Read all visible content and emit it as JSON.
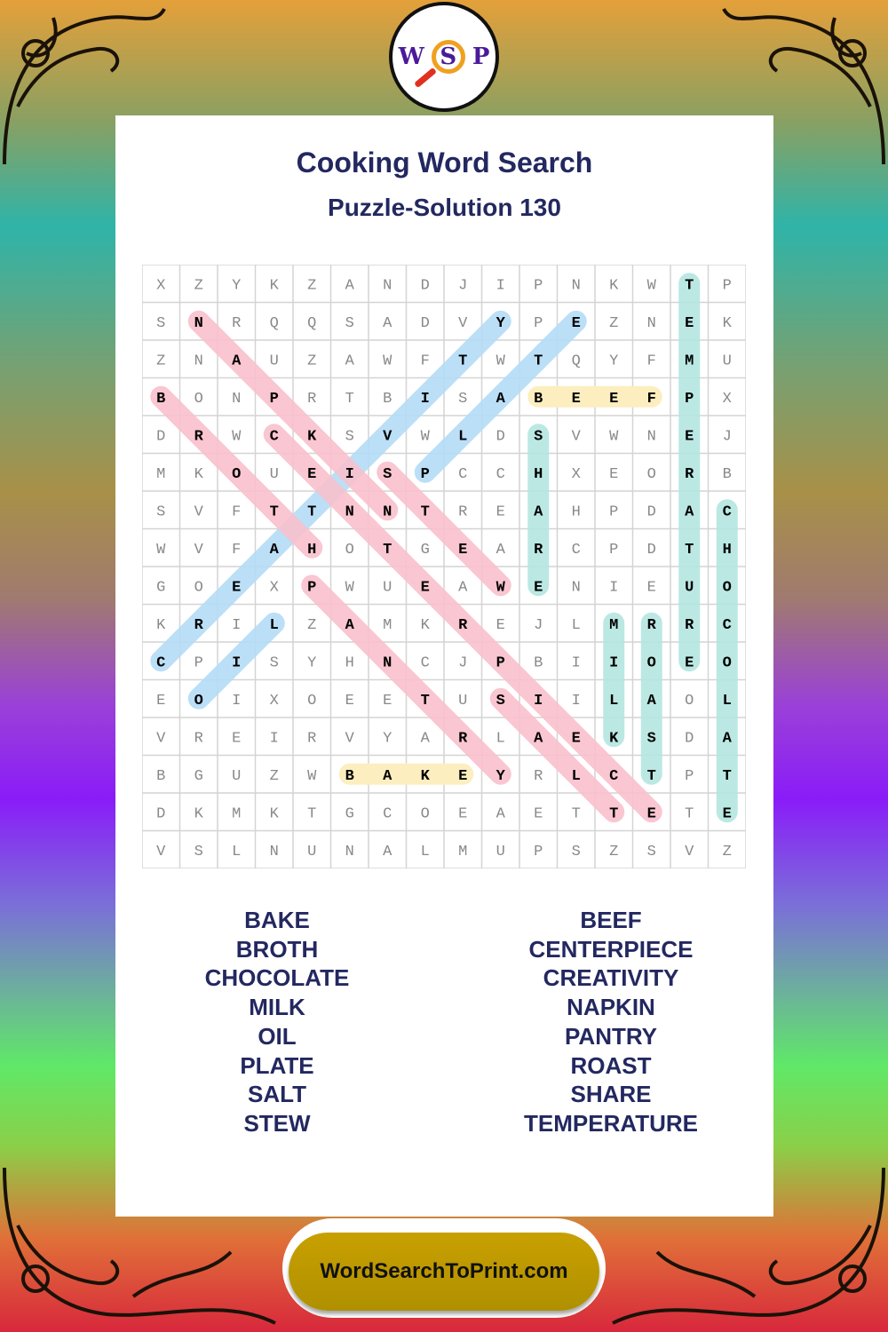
{
  "title": "Cooking Word Search",
  "subtitle": "Puzzle-Solution 130",
  "logo": {
    "letters": [
      "W",
      "S",
      "P"
    ]
  },
  "footer": "WordSearchToPrint.com",
  "colors": {
    "pink": "#f8c0cc",
    "blue": "#b4dcf6",
    "teal": "#b4e6e0",
    "yellow": "#fdeec0",
    "text": "#232860"
  },
  "grid": [
    "XZYKZANDJIPNKWTP",
    "SNRQQSADVYPEZNEK",
    "ZNAUZAWFTWTQYFMU",
    "BONPRTBISABEEFPX",
    "DRWCKSVWLDSVWNEJ",
    "MKOUEISPCCHXEORB",
    "SVFTTNNTREAHPDAC",
    "WVFAHOTGEARCPDTH",
    "GOEXPWUEAWENIEUO",
    "KRILZAMKREJLMRRC",
    "CPISYHNCJPBIIOEO",
    "EOIXOEETUSIILAOL",
    "VREIRVYARLAEKSDA",
    "BGUZWBAKEYRLCTPT",
    "DKMKTGCOEAETTETE",
    "VSLNUNALMUPSZSVZ"
  ],
  "solutions": [
    {
      "word": "TEMPERATURE",
      "start": [
        0,
        14
      ],
      "end": [
        10,
        14
      ],
      "color": "teal"
    },
    {
      "word": "CHOCOLATE",
      "start": [
        6,
        15
      ],
      "end": [
        14,
        15
      ],
      "color": "teal"
    },
    {
      "word": "SHARE",
      "start": [
        4,
        10
      ],
      "end": [
        8,
        10
      ],
      "color": "teal"
    },
    {
      "word": "MILK",
      "start": [
        9,
        12
      ],
      "end": [
        12,
        12
      ],
      "color": "teal"
    },
    {
      "word": "ROAST",
      "start": [
        9,
        13
      ],
      "end": [
        13,
        13
      ],
      "color": "teal"
    },
    {
      "word": "BEEF",
      "start": [
        3,
        10
      ],
      "end": [
        3,
        13
      ],
      "color": "yellow"
    },
    {
      "word": "BAKE",
      "start": [
        13,
        5
      ],
      "end": [
        13,
        8
      ],
      "color": "yellow"
    },
    {
      "word": "CREATIVITY",
      "start": [
        10,
        0
      ],
      "end": [
        1,
        9
      ],
      "color": "blue"
    },
    {
      "word": "PLATE",
      "start": [
        5,
        7
      ],
      "end": [
        1,
        11
      ],
      "color": "blue"
    },
    {
      "word": "OIL",
      "start": [
        11,
        1
      ],
      "end": [
        9,
        3
      ],
      "color": "blue"
    },
    {
      "word": "NAPKIN",
      "start": [
        1,
        1
      ],
      "end": [
        6,
        6
      ],
      "color": "pink"
    },
    {
      "word": "BROTH",
      "start": [
        3,
        0
      ],
      "end": [
        7,
        4
      ],
      "color": "pink"
    },
    {
      "word": "CENTERPIECE",
      "start": [
        4,
        3
      ],
      "end": [
        14,
        13
      ],
      "color": "pink"
    },
    {
      "word": "STEW",
      "start": [
        5,
        6
      ],
      "end": [
        8,
        9
      ],
      "color": "pink"
    },
    {
      "word": "PANTRY",
      "start": [
        8,
        4
      ],
      "end": [
        13,
        9
      ],
      "color": "pink"
    },
    {
      "word": "SALT",
      "start": [
        11,
        9
      ],
      "end": [
        14,
        12
      ],
      "color": "pink"
    }
  ],
  "word_list": {
    "left": [
      "BAKE",
      "BROTH",
      "CHOCOLATE",
      "MILK",
      "OIL",
      "PLATE",
      "SALT",
      "STEW"
    ],
    "right": [
      "BEEF",
      "CENTERPIECE",
      "CREATIVITY",
      "NAPKIN",
      "PANTRY",
      "ROAST",
      "SHARE",
      "TEMPERATURE"
    ]
  }
}
